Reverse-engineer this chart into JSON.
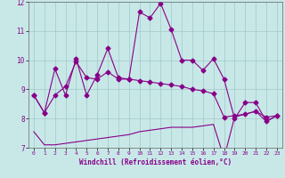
{
  "xlabel": "Windchill (Refroidissement éolien,°C)",
  "bg_color": "#c8e8e8",
  "line_color": "#880088",
  "grid_color": "#a0c8c8",
  "xlim": [
    -0.5,
    23.5
  ],
  "ylim": [
    7,
    12
  ],
  "yticks": [
    7,
    8,
    9,
    10,
    11,
    12
  ],
  "xticks": [
    0,
    1,
    2,
    3,
    4,
    5,
    6,
    7,
    8,
    9,
    10,
    11,
    12,
    13,
    14,
    15,
    16,
    17,
    18,
    19,
    20,
    21,
    22,
    23
  ],
  "line1_x": [
    0,
    1,
    2,
    3,
    4,
    5,
    6,
    7,
    8,
    9,
    10,
    11,
    12,
    13,
    14,
    15,
    16,
    17,
    18,
    19,
    20,
    21,
    22,
    23
  ],
  "line1_y": [
    8.8,
    8.2,
    9.7,
    8.8,
    10.05,
    8.8,
    9.5,
    10.4,
    9.4,
    9.35,
    11.65,
    11.45,
    11.95,
    11.05,
    10.0,
    10.0,
    9.65,
    10.05,
    9.35,
    8.0,
    8.55,
    8.55,
    7.9,
    8.1
  ],
  "line2_x": [
    0,
    1,
    2,
    3,
    4,
    5,
    6,
    7,
    8,
    9,
    10,
    11,
    12,
    13,
    14,
    15,
    16,
    17,
    18,
    19,
    20,
    21,
    22,
    23
  ],
  "line2_y": [
    8.8,
    8.2,
    8.8,
    9.1,
    9.95,
    9.4,
    9.35,
    9.6,
    9.35,
    9.35,
    9.3,
    9.25,
    9.2,
    9.15,
    9.1,
    9.0,
    8.95,
    8.85,
    8.05,
    8.1,
    8.15,
    8.25,
    8.05,
    8.1
  ],
  "line3_x": [
    0,
    1,
    2,
    3,
    4,
    5,
    6,
    7,
    8,
    9,
    10,
    11,
    12,
    13,
    14,
    15,
    16,
    17,
    18,
    19,
    20,
    21,
    22,
    23
  ],
  "line3_y": [
    7.55,
    7.1,
    7.1,
    7.15,
    7.2,
    7.25,
    7.3,
    7.35,
    7.4,
    7.45,
    7.55,
    7.6,
    7.65,
    7.7,
    7.7,
    7.7,
    7.75,
    7.8,
    6.65,
    8.05,
    8.15,
    8.25,
    7.9,
    8.1
  ]
}
